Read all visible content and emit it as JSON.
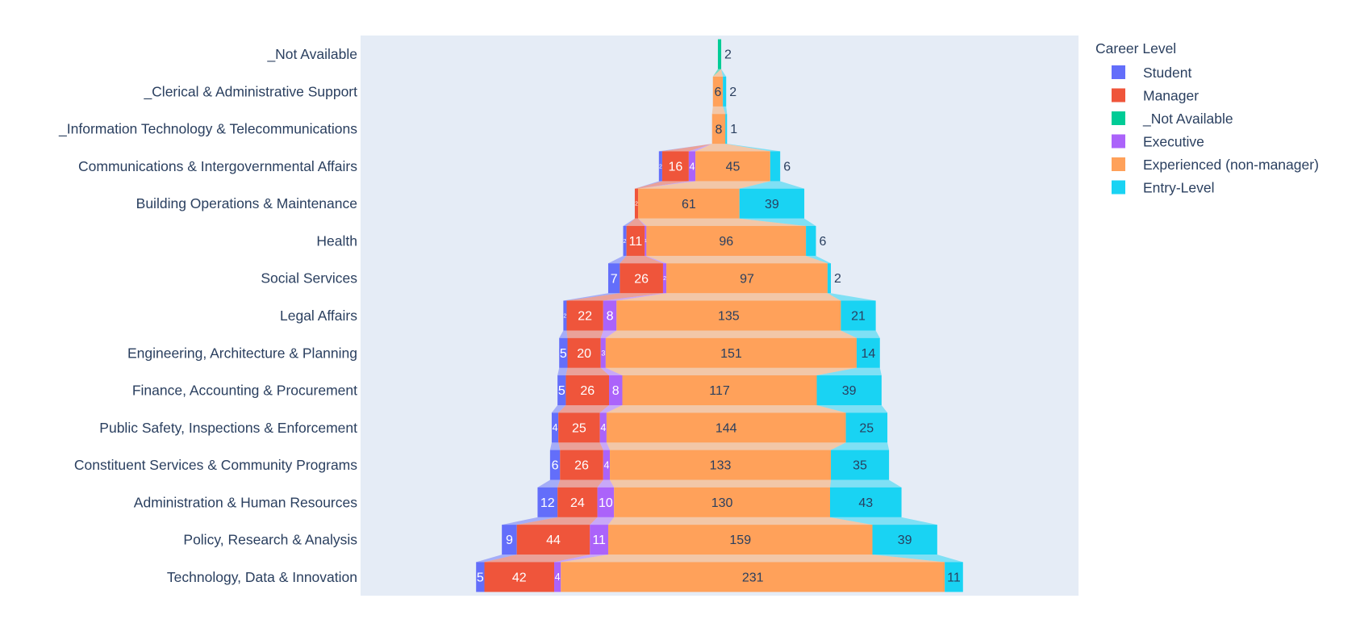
{
  "chart_data": {
    "type": "funnel",
    "title": "",
    "xlabel": "",
    "ylabel": "",
    "grid": false,
    "legend_title": "Career Level",
    "legend_position": "top-right",
    "categories": [
      "_Not Available",
      "_Clerical & Administrative Support",
      "_Information Technology & Telecommunications",
      "Communications & Intergovernmental Affairs",
      "Building Operations & Maintenance",
      "Health",
      "Social Services",
      "Legal Affairs",
      "Engineering, Architecture & Planning",
      "Finance, Accounting & Procurement",
      "Public Safety, Inspections & Enforcement",
      "Constituent Services & Community Programs",
      "Administration & Human Resources",
      "Policy, Research & Analysis",
      "Technology, Data & Innovation"
    ],
    "series": [
      {
        "name": "Student",
        "color": "#636efa",
        "values": [
          0,
          0,
          0,
          2,
          0,
          2,
          7,
          2,
          5,
          5,
          4,
          6,
          12,
          9,
          5
        ]
      },
      {
        "name": "Manager",
        "color": "#EF553B",
        "values": [
          0,
          0,
          0,
          16,
          2,
          11,
          26,
          22,
          20,
          26,
          25,
          26,
          24,
          44,
          42
        ]
      },
      {
        "name": "_Not Available",
        "color": "#00cc96",
        "values": [
          2,
          0,
          0,
          0,
          0,
          0,
          0,
          0,
          0,
          0,
          0,
          0,
          0,
          0,
          0
        ]
      },
      {
        "name": "Executive",
        "color": "#ab63fa",
        "values": [
          0,
          0,
          0,
          4,
          0,
          1,
          2,
          8,
          3,
          8,
          4,
          4,
          10,
          11,
          4
        ]
      },
      {
        "name": "Experienced (non-manager)",
        "color": "#FFA15A",
        "values": [
          0,
          6,
          8,
          45,
          61,
          96,
          97,
          135,
          151,
          117,
          144,
          133,
          130,
          159,
          231
        ]
      },
      {
        "name": "Entry-Level",
        "color": "#19d3f3",
        "values": [
          0,
          2,
          1,
          6,
          39,
          6,
          2,
          21,
          14,
          39,
          25,
          35,
          43,
          39,
          11
        ]
      }
    ]
  }
}
